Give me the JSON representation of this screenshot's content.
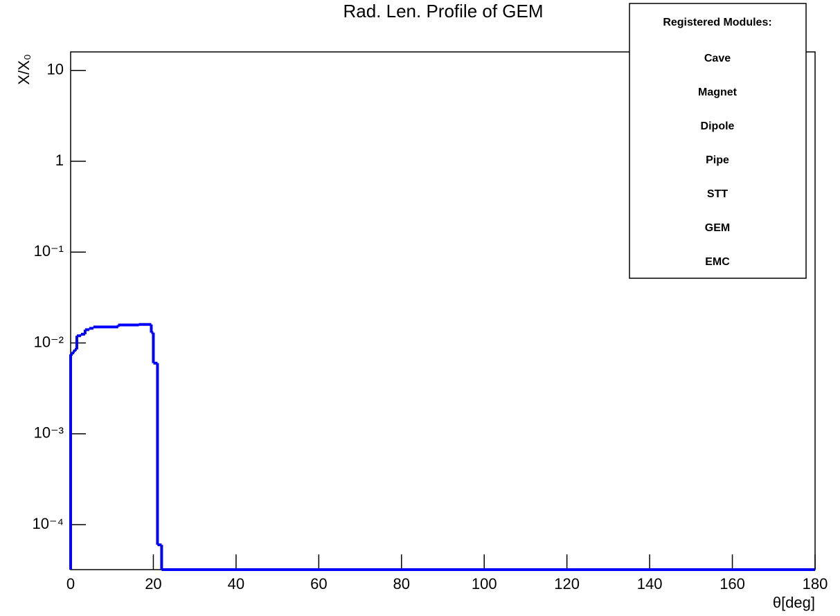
{
  "chart_data": {
    "type": "histogram",
    "title": "Rad. Len. Profile of GEM",
    "x_label": "θ[deg]",
    "y_label": "X/X₀",
    "bins": [
      0,
      0.5,
      1,
      1.5,
      2.5,
      3.5,
      4.5,
      5.5,
      11.5,
      16.5,
      19.5,
      20,
      21,
      22,
      180
    ],
    "values": [
      0.0075,
      0.008,
      0.0085,
      0.012,
      0.0125,
      0.014,
      0.0145,
      0.015,
      0.0158,
      0.016,
      0.013,
      0.006,
      6e-05,
      0
    ],
    "color": "#0000ff",
    "xlim": [
      0,
      180
    ],
    "xticks": [
      0,
      20,
      40,
      60,
      80,
      100,
      120,
      140,
      160,
      180
    ],
    "ylim": [
      3.2e-05,
      16
    ],
    "log_y": true,
    "yticks": [
      10,
      1,
      {
        "value": 0.1,
        "label": "10⁻¹"
      },
      {
        "value": 0.01,
        "label": "10⁻²"
      },
      {
        "value": 0.001,
        "label": "10⁻³"
      },
      {
        "value": 0.0001,
        "label": "10⁻⁴"
      }
    ],
    "legend": {
      "title": "Registered Modules:",
      "entries": [
        {
          "label": "Cave",
          "color": "#000000"
        },
        {
          "label": "Magnet",
          "color": "#000000"
        },
        {
          "label": "Dipole",
          "color": "#000000"
        },
        {
          "label": "Pipe",
          "color": "#000000"
        },
        {
          "label": "STT",
          "color": "#000000"
        },
        {
          "label": "GEM",
          "color": "#000000"
        },
        {
          "label": "EMC",
          "color": "#00ff00"
        }
      ]
    }
  }
}
